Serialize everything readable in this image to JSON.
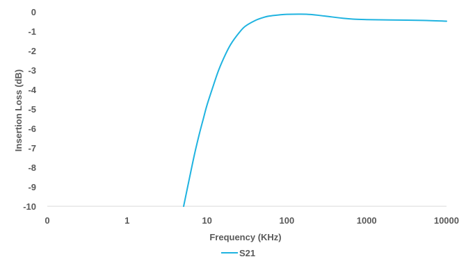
{
  "chart_data": {
    "type": "line",
    "title": "",
    "xlabel": "Frequency (KHz)",
    "ylabel": "Insertion Loss (dB)",
    "x_scale": "log",
    "x_ticks": [
      "0",
      "1",
      "10",
      "100",
      "1000",
      "10000"
    ],
    "y_ticks": [
      "0",
      "-1",
      "-2",
      "-3",
      "-4",
      "-5",
      "-6",
      "-7",
      "-8",
      "-9",
      "-10"
    ],
    "ylim": [
      -10,
      0
    ],
    "grid": false,
    "legend_position": "bottom",
    "series": [
      {
        "name": "S21",
        "color": "#1fb3e0",
        "x": [
          5.1,
          6,
          7,
          8,
          9,
          10,
          12,
          14,
          17,
          20,
          25,
          30,
          40,
          50,
          60,
          80,
          100,
          150,
          200,
          300,
          500,
          700,
          1000,
          2000,
          5000,
          10000
        ],
        "y": [
          -10.0,
          -8.6,
          -7.3,
          -6.3,
          -5.5,
          -4.8,
          -3.8,
          -3.0,
          -2.2,
          -1.65,
          -1.1,
          -0.75,
          -0.45,
          -0.3,
          -0.22,
          -0.16,
          -0.13,
          -0.12,
          -0.14,
          -0.22,
          -0.33,
          -0.38,
          -0.4,
          -0.42,
          -0.44,
          -0.48
        ]
      }
    ]
  }
}
